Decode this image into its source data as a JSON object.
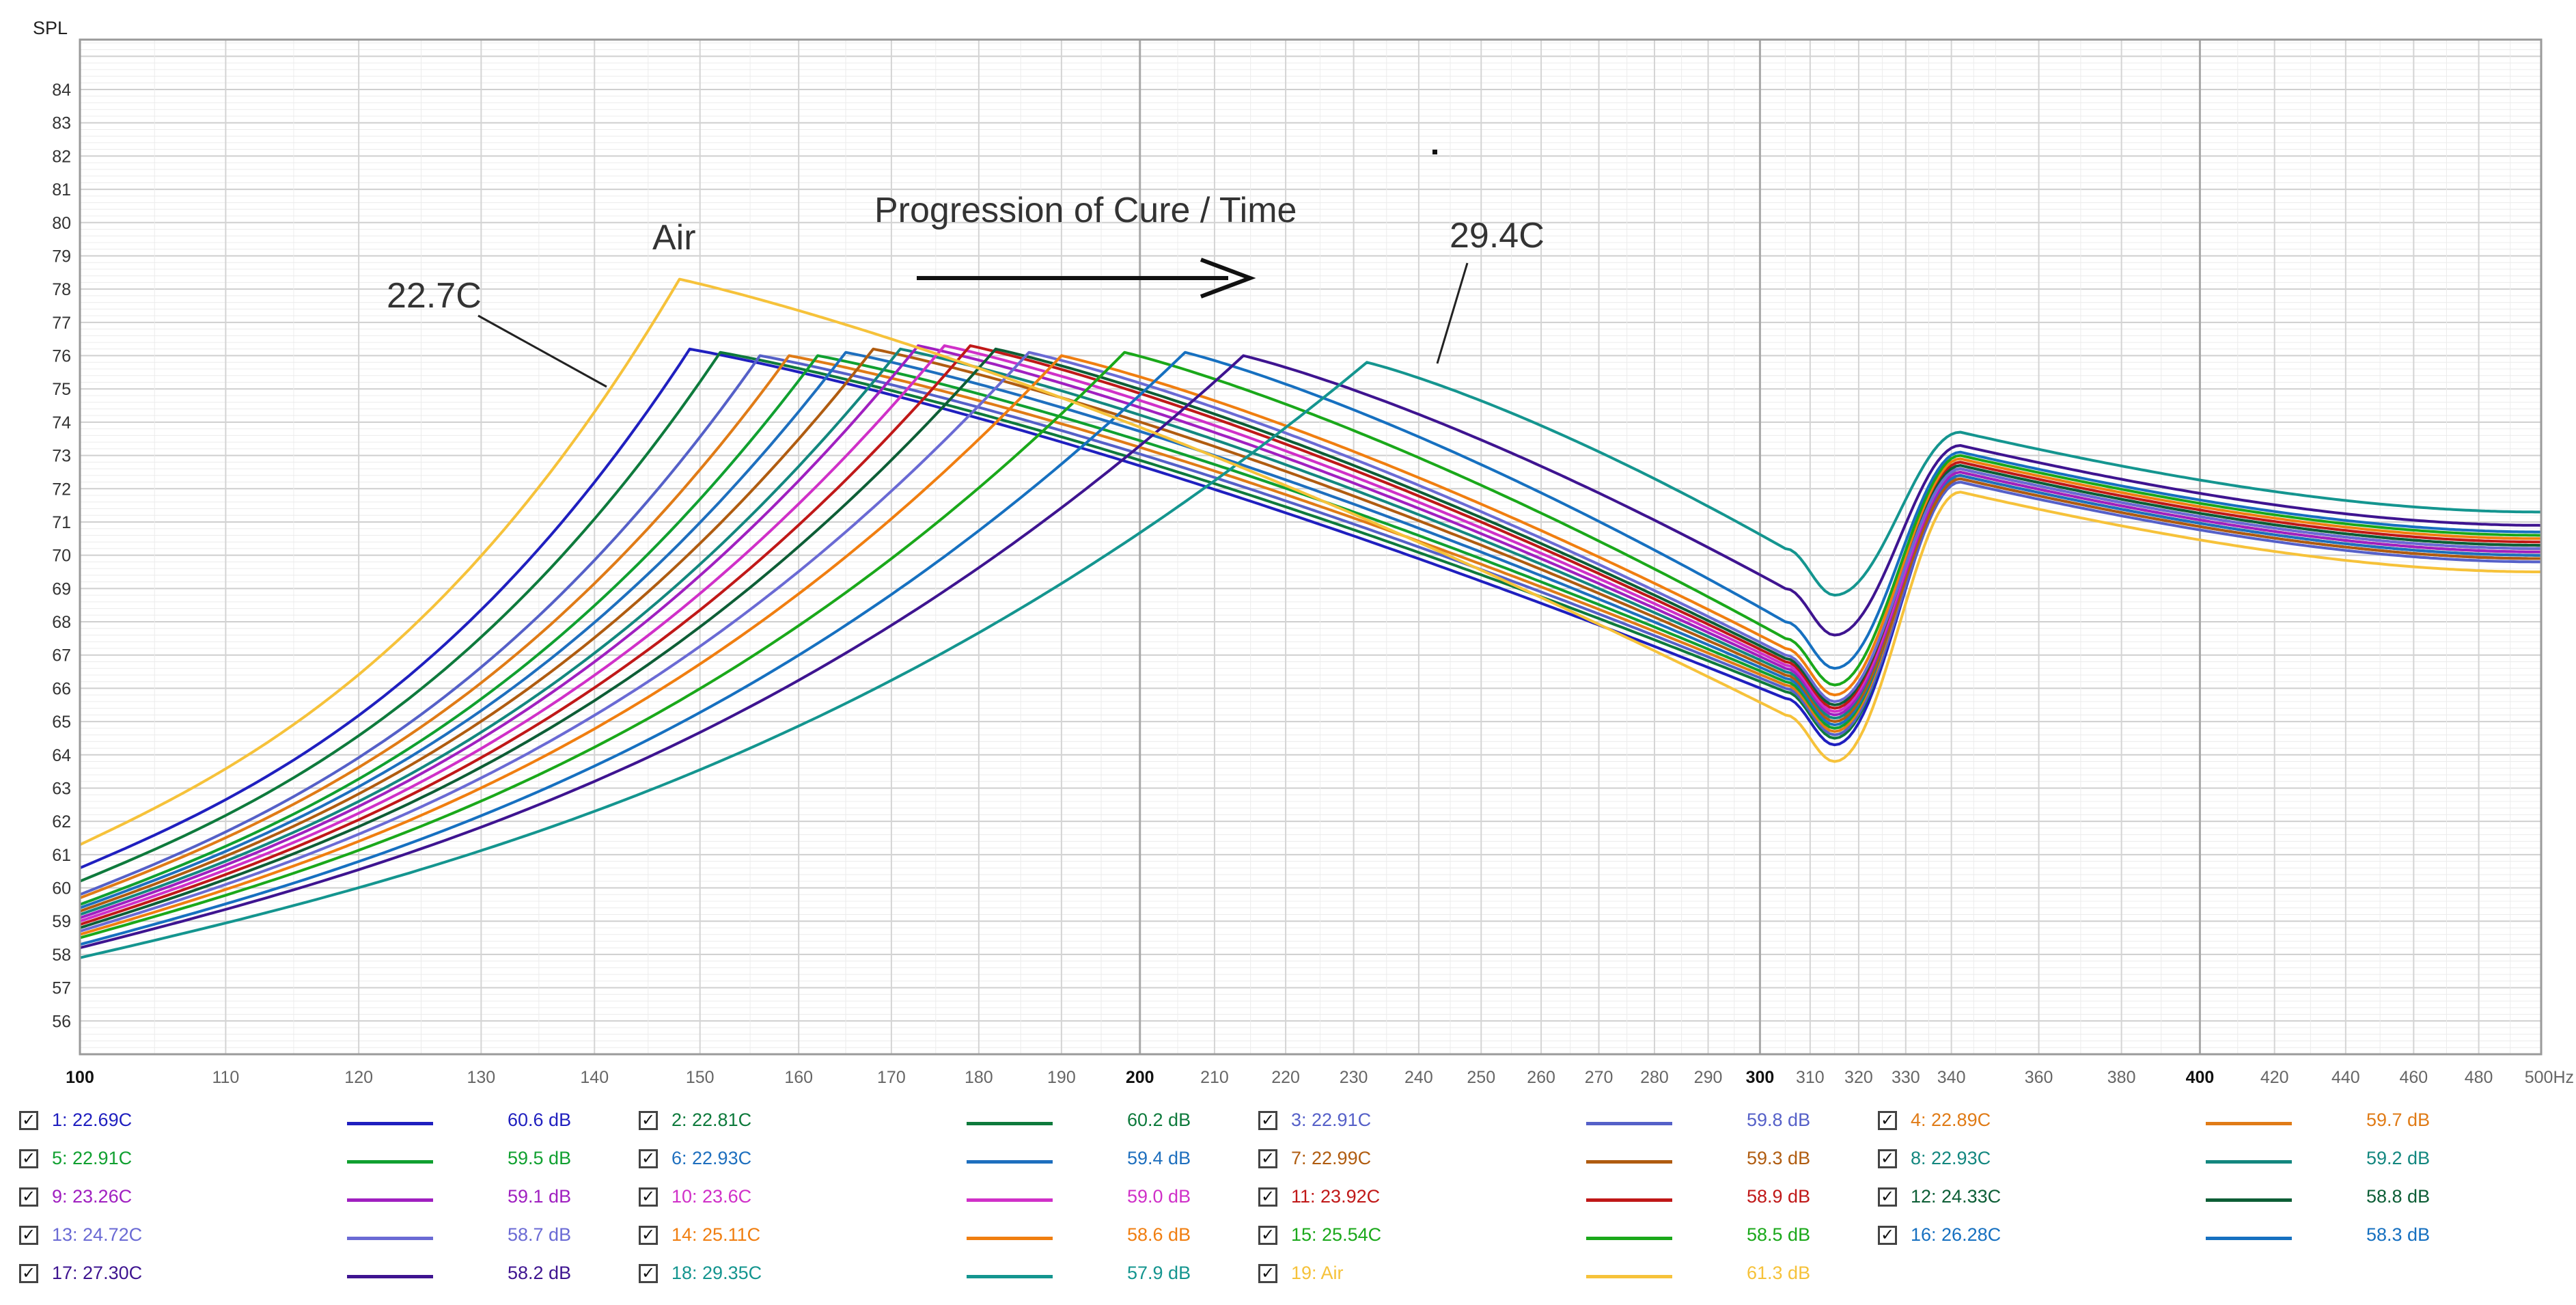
{
  "chart_data": {
    "type": "line",
    "ylabel": "SPL",
    "x_unit": "Hz",
    "xlim": [
      100,
      500
    ],
    "ylim": [
      55,
      85.5
    ],
    "x_scale": "log",
    "grid": true,
    "x_ticks": [
      100,
      110,
      120,
      130,
      140,
      150,
      160,
      170,
      180,
      190,
      200,
      210,
      220,
      230,
      240,
      250,
      260,
      270,
      280,
      290,
      300,
      310,
      320,
      330,
      340,
      360,
      380,
      400,
      420,
      440,
      460,
      480,
      500
    ],
    "x_tick_labels": [
      "100",
      "110",
      "120",
      "130",
      "140",
      "150",
      "160",
      "170",
      "180",
      "190",
      "200",
      "210",
      "220",
      "230",
      "240",
      "250",
      "260",
      "270",
      "280",
      "290",
      "300",
      "310",
      "320",
      "330",
      "340",
      "360",
      "380",
      "400",
      "420",
      "440",
      "460",
      "480",
      "500Hz"
    ],
    "x_major_ticks": [
      100,
      200,
      300,
      400
    ],
    "y_ticks": [
      56,
      57,
      58,
      59,
      60,
      61,
      62,
      63,
      64,
      65,
      66,
      67,
      68,
      69,
      70,
      71,
      72,
      73,
      74,
      75,
      76,
      77,
      78,
      79,
      80,
      81,
      82,
      83,
      84
    ],
    "annotations": {
      "air": "Air",
      "first_temp": "22.7C",
      "progression": "Progression of Cure / Time",
      "last_temp": "29.4C"
    },
    "series": [
      {
        "name": "1: 22.69C",
        "value_label": "60.6 dB",
        "color": "#1f1fbf",
        "start": 60.6,
        "peak_x": 149,
        "peak_y": 76.2,
        "dip_y": 64.3,
        "end": 69.9
      },
      {
        "name": "2: 22.81C",
        "value_label": "60.2 dB",
        "color": "#0e7a3c",
        "start": 60.2,
        "peak_x": 152,
        "peak_y": 76.1,
        "dip_y": 64.5,
        "end": 70.0
      },
      {
        "name": "3: 22.91C",
        "value_label": "59.8 dB",
        "color": "#5560c8",
        "start": 59.8,
        "peak_x": 156,
        "peak_y": 76.0,
        "dip_y": 64.6,
        "end": 69.8
      },
      {
        "name": "4: 22.89C",
        "value_label": "59.7 dB",
        "color": "#e07b16",
        "start": 59.7,
        "peak_x": 159,
        "peak_y": 76.0,
        "dip_y": 64.7,
        "end": 70.1
      },
      {
        "name": "5: 22.91C",
        "value_label": "59.5 dB",
        "color": "#10a030",
        "start": 59.5,
        "peak_x": 162,
        "peak_y": 76.0,
        "dip_y": 64.8,
        "end": 70.2
      },
      {
        "name": "6: 22.93C",
        "value_label": "59.4 dB",
        "color": "#1e6fbe",
        "start": 59.4,
        "peak_x": 165,
        "peak_y": 76.1,
        "dip_y": 64.9,
        "end": 70.0
      },
      {
        "name": "7: 22.99C",
        "value_label": "59.3 dB",
        "color": "#b05c10",
        "start": 59.3,
        "peak_x": 168,
        "peak_y": 76.2,
        "dip_y": 65.0,
        "end": 69.9
      },
      {
        "name": "8: 22.93C",
        "value_label": "59.2 dB",
        "color": "#13877f",
        "start": 59.2,
        "peak_x": 171,
        "peak_y": 76.2,
        "dip_y": 65.1,
        "end": 70.3
      },
      {
        "name": "9: 23.26C",
        "value_label": "59.1 dB",
        "color": "#a020c0",
        "start": 59.1,
        "peak_x": 173,
        "peak_y": 76.3,
        "dip_y": 65.2,
        "end": 70.1
      },
      {
        "name": "10: 23.6C",
        "value_label": "59.0 dB",
        "color": "#d030c8",
        "start": 59.0,
        "peak_x": 176,
        "peak_y": 76.3,
        "dip_y": 65.3,
        "end": 70.2
      },
      {
        "name": "11: 23.92C",
        "value_label": "58.9 dB",
        "color": "#c01818",
        "start": 58.9,
        "peak_x": 179,
        "peak_y": 76.3,
        "dip_y": 65.4,
        "end": 70.4
      },
      {
        "name": "12: 24.33C",
        "value_label": "58.8 dB",
        "color": "#0d5e36",
        "start": 58.8,
        "peak_x": 182,
        "peak_y": 76.2,
        "dip_y": 65.5,
        "end": 70.3
      },
      {
        "name": "13: 24.72C",
        "value_label": "58.7 dB",
        "color": "#6a6ad4",
        "start": 58.7,
        "peak_x": 186,
        "peak_y": 76.1,
        "dip_y": 65.6,
        "end": 70.2
      },
      {
        "name": "14: 25.11C",
        "value_label": "58.6 dB",
        "color": "#f07e10",
        "start": 58.6,
        "peak_x": 190,
        "peak_y": 76.0,
        "dip_y": 65.8,
        "end": 70.5
      },
      {
        "name": "15: 25.54C",
        "value_label": "58.5 dB",
        "color": "#1aa81a",
        "start": 58.5,
        "peak_x": 198,
        "peak_y": 76.1,
        "dip_y": 66.1,
        "end": 70.6
      },
      {
        "name": "16: 26.28C",
        "value_label": "58.3 dB",
        "color": "#1670c0",
        "start": 58.3,
        "peak_x": 206,
        "peak_y": 76.1,
        "dip_y": 66.6,
        "end": 70.7
      },
      {
        "name": "17: 27.30C",
        "value_label": "58.2 dB",
        "color": "#3e1490",
        "start": 58.2,
        "peak_x": 214,
        "peak_y": 76.0,
        "dip_y": 67.6,
        "end": 70.9
      },
      {
        "name": "18: 29.35C",
        "value_label": "57.9 dB",
        "color": "#14958f",
        "start": 57.9,
        "peak_x": 232,
        "peak_y": 75.8,
        "dip_y": 68.8,
        "end": 71.3
      },
      {
        "name": "19: Air",
        "value_label": "61.3 dB",
        "color": "#f6c23a",
        "start": 61.3,
        "peak_x": 148,
        "peak_y": 78.3,
        "dip_y": 63.8,
        "end": 69.5
      }
    ]
  }
}
